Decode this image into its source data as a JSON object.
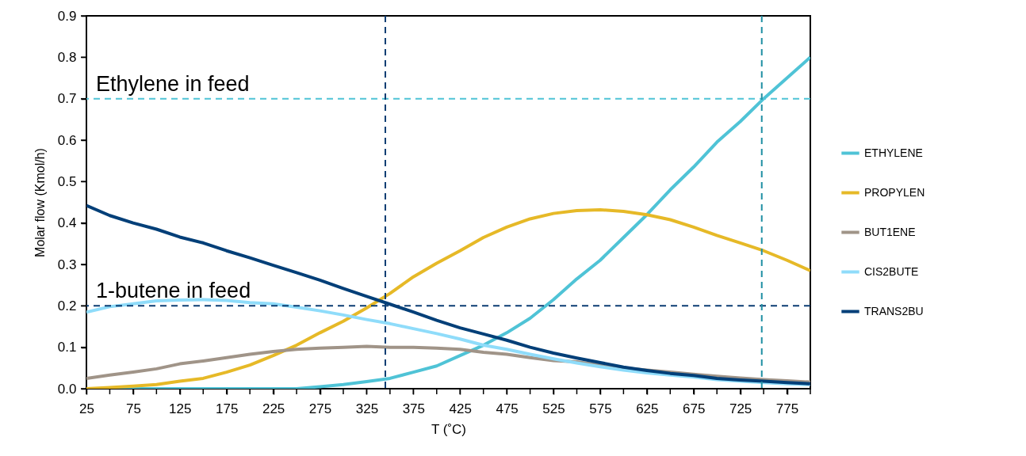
{
  "chart_data": {
    "type": "line",
    "xlabel": "T (˚C)",
    "ylabel": "Molar flow (Kmol/h)",
    "x": [
      25,
      50,
      75,
      100,
      125,
      150,
      175,
      200,
      225,
      250,
      275,
      300,
      325,
      350,
      375,
      400,
      425,
      450,
      475,
      500,
      525,
      550,
      575,
      600,
      625,
      650,
      675,
      700,
      725,
      750,
      775,
      800
    ],
    "series": [
      {
        "name": "ETHYLENE",
        "color": "#4fc3d6",
        "values": [
          0,
          0,
          0,
          0,
          0,
          0,
          0,
          0,
          0,
          0,
          0.005,
          0.01,
          0.017,
          0.025,
          0.04,
          0.055,
          0.08,
          0.105,
          0.135,
          0.17,
          0.215,
          0.265,
          0.31,
          0.365,
          0.42,
          0.48,
          0.535,
          0.595,
          0.645,
          0.7,
          0.75,
          0.8
        ]
      },
      {
        "name": "PROPYLEN",
        "color": "#e6b927",
        "values": [
          0,
          0.003,
          0.006,
          0.01,
          0.018,
          0.025,
          0.04,
          0.057,
          0.08,
          0.105,
          0.135,
          0.163,
          0.195,
          0.23,
          0.27,
          0.303,
          0.333,
          0.365,
          0.39,
          0.41,
          0.423,
          0.43,
          0.432,
          0.428,
          0.42,
          0.408,
          0.39,
          0.37,
          0.352,
          0.333,
          0.31,
          0.285
        ]
      },
      {
        "name": "BUT1ENE",
        "color": "#a09488",
        "values": [
          0.025,
          0.033,
          0.04,
          0.048,
          0.06,
          0.067,
          0.075,
          0.083,
          0.09,
          0.095,
          0.098,
          0.1,
          0.102,
          0.1,
          0.1,
          0.098,
          0.095,
          0.088,
          0.083,
          0.075,
          0.068,
          0.065,
          0.057,
          0.05,
          0.045,
          0.04,
          0.035,
          0.03,
          0.026,
          0.022,
          0.019,
          0.016
        ]
      },
      {
        "name": "CIS2BUTE",
        "color": "#8fdcfa",
        "values": [
          0.185,
          0.198,
          0.205,
          0.212,
          0.214,
          0.215,
          0.213,
          0.208,
          0.205,
          0.197,
          0.188,
          0.178,
          0.167,
          0.157,
          0.145,
          0.133,
          0.12,
          0.105,
          0.095,
          0.083,
          0.072,
          0.062,
          0.053,
          0.045,
          0.038,
          0.033,
          0.028,
          0.022,
          0.018,
          0.015,
          0.012,
          0.01
        ]
      },
      {
        "name": "TRANS2BU",
        "color": "#023f78",
        "values": [
          0.442,
          0.418,
          0.4,
          0.385,
          0.366,
          0.352,
          0.333,
          0.316,
          0.298,
          0.28,
          0.262,
          0.242,
          0.223,
          0.204,
          0.185,
          0.165,
          0.147,
          0.132,
          0.117,
          0.1,
          0.086,
          0.074,
          0.063,
          0.052,
          0.044,
          0.037,
          0.032,
          0.025,
          0.021,
          0.018,
          0.015,
          0.012
        ]
      }
    ],
    "xlim": [
      25,
      800
    ],
    "xticks": [
      25,
      {
        "value": 50,
        "label": null
      },
      75,
      {
        "value": 100,
        "label": null
      },
      125,
      {
        "value": 150,
        "label": null
      },
      175,
      {
        "value": 200,
        "label": null
      },
      225,
      {
        "value": 250,
        "label": null
      },
      275,
      {
        "value": 300,
        "label": null
      },
      325,
      {
        "value": 350,
        "label": null
      },
      375,
      {
        "value": 400,
        "label": null
      },
      425,
      {
        "value": 450,
        "label": null
      },
      475,
      {
        "value": 500,
        "label": null
      },
      525,
      {
        "value": 550,
        "label": null
      },
      575,
      {
        "value": 600,
        "label": null
      },
      625,
      {
        "value": 650,
        "label": null
      },
      675,
      {
        "value": 700,
        "label": null
      },
      725,
      {
        "value": 750,
        "label": null
      },
      775,
      {
        "value": 800,
        "label": null
      }
    ],
    "ylim": [
      0,
      0.9
    ],
    "yticks": [
      {
        "value": 0,
        "label": "0.0"
      },
      0.1,
      0.2,
      0.3,
      0.4,
      0.5,
      0.6,
      0.7,
      0.8,
      0.9
    ],
    "ref_lines": [
      {
        "axis": "y",
        "value": 0.7,
        "label": "Ethylene in feed",
        "color": "#4fc3d6",
        "line_style": "dashed"
      },
      {
        "axis": "y",
        "value": 0.2,
        "label": "1-butene in feed",
        "color": "#0b3d73",
        "line_style": "dashed"
      },
      {
        "axis": "x",
        "value": 345,
        "color": "#0b3d73",
        "line_style": "dashed"
      },
      {
        "axis": "x",
        "value": 748,
        "color": "#1f8fa3",
        "line_style": "dashed"
      }
    ],
    "grid": false,
    "legend": "right",
    "marker": "none",
    "line_style": "solid"
  }
}
